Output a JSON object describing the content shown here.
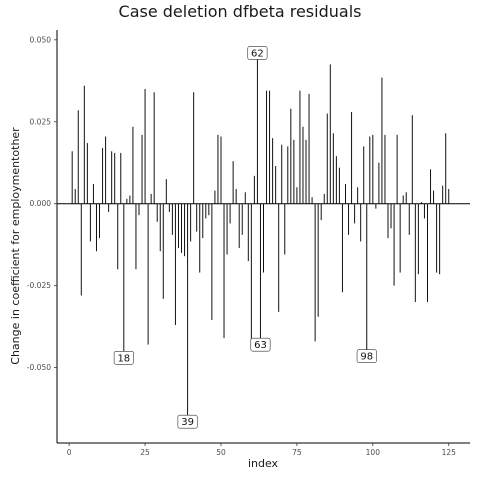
{
  "chart_data": {
    "type": "bar",
    "title": "Case deletion dfbeta residuals",
    "xlabel": "index",
    "ylabel": "Change in coefficient for employmentother",
    "xlim": [
      -4,
      132
    ],
    "ylim": [
      -0.073,
      0.053
    ],
    "x_ticks": [
      0,
      25,
      50,
      75,
      100,
      125
    ],
    "x_tick_labels": [
      "0",
      "25",
      "50",
      "75",
      "100",
      "125"
    ],
    "y_ticks": [
      -0.05,
      -0.025,
      0.0,
      0.025,
      0.05
    ],
    "y_tick_labels": [
      "-0.050",
      "-0.025",
      "0.000",
      "0.025",
      "0.050"
    ],
    "baseline": 0,
    "grid": false,
    "values": [
      0.016,
      0.0045,
      0.0285,
      -0.028,
      0.036,
      0.0185,
      -0.0115,
      0.006,
      -0.0145,
      -0.0105,
      0.017,
      0.0205,
      -0.0025,
      0.016,
      0.0155,
      -0.02,
      0.0155,
      -0.047,
      0.0015,
      0.0025,
      0.0235,
      -0.02,
      -0.0035,
      0.021,
      0.035,
      -0.043,
      0.003,
      0.034,
      -0.0055,
      -0.0145,
      -0.029,
      0.0075,
      -0.0025,
      -0.0095,
      -0.037,
      -0.0135,
      -0.015,
      -0.016,
      -0.0665,
      -0.0115,
      0.034,
      -0.0085,
      -0.021,
      -0.0105,
      -0.0045,
      -0.0035,
      -0.0355,
      0.004,
      0.021,
      0.0205,
      -0.041,
      -0.0155,
      -0.006,
      0.013,
      0.0045,
      -0.0135,
      -0.0095,
      0.0035,
      -0.0175,
      -0.042,
      0.0085,
      0.046,
      -0.043,
      -0.021,
      0.0345,
      0.0345,
      0.02,
      0.0115,
      -0.033,
      0.018,
      -0.0155,
      0.0175,
      0.029,
      0.0195,
      0.005,
      0.0345,
      0.0235,
      0.0195,
      0.0335,
      0.002,
      -0.042,
      -0.0345,
      -0.005,
      0.003,
      0.0275,
      0.0425,
      0.0215,
      0.0145,
      0.011,
      -0.027,
      0.006,
      -0.0095,
      0.028,
      -0.006,
      0.005,
      -0.0115,
      0.0175,
      -0.0465,
      0.0205,
      0.021,
      -0.0015,
      0.0125,
      0.0385,
      0.021,
      -0.0105,
      -0.0075,
      -0.025,
      0.021,
      -0.021,
      0.0025,
      0.0035,
      -0.0095,
      0.027,
      -0.03,
      -0.0215,
      0.0005,
      -0.0045,
      -0.03,
      0.0105,
      0.004,
      -0.021,
      -0.0215,
      0.0055,
      0.0215,
      0.0045
    ],
    "annotations": [
      {
        "index": 18,
        "label": "18"
      },
      {
        "index": 39,
        "label": "39"
      },
      {
        "index": 62,
        "label": "62"
      },
      {
        "index": 63,
        "label": "63"
      },
      {
        "index": 98,
        "label": "98"
      }
    ]
  }
}
